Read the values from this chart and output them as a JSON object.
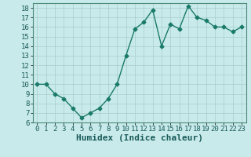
{
  "x": [
    0,
    1,
    2,
    3,
    4,
    5,
    6,
    7,
    8,
    9,
    10,
    11,
    12,
    13,
    14,
    15,
    16,
    17,
    18,
    19,
    20,
    21,
    22,
    23
  ],
  "y": [
    10,
    10,
    9,
    8.5,
    7.5,
    6.5,
    7,
    7.5,
    8.5,
    10,
    13,
    15.8,
    16.5,
    17.8,
    14,
    16.3,
    15.8,
    18.2,
    17,
    16.7,
    16,
    16,
    15.5,
    16
  ],
  "line_color": "#1a7a6a",
  "marker": "D",
  "marker_size": 2.5,
  "background_color": "#c8eaea",
  "grid_color": "#a8cccc",
  "xlabel": "Humidex (Indice chaleur)",
  "ylim": [
    6,
    18.5
  ],
  "xlim": [
    -0.5,
    23.5
  ],
  "yticks": [
    6,
    7,
    8,
    9,
    10,
    11,
    12,
    13,
    14,
    15,
    16,
    17,
    18
  ],
  "xticks": [
    0,
    1,
    2,
    3,
    4,
    5,
    6,
    7,
    8,
    9,
    10,
    11,
    12,
    13,
    14,
    15,
    16,
    17,
    18,
    19,
    20,
    21,
    22,
    23
  ],
  "tick_label_fontsize": 6.5,
  "xlabel_fontsize": 8,
  "line_width": 1.0
}
